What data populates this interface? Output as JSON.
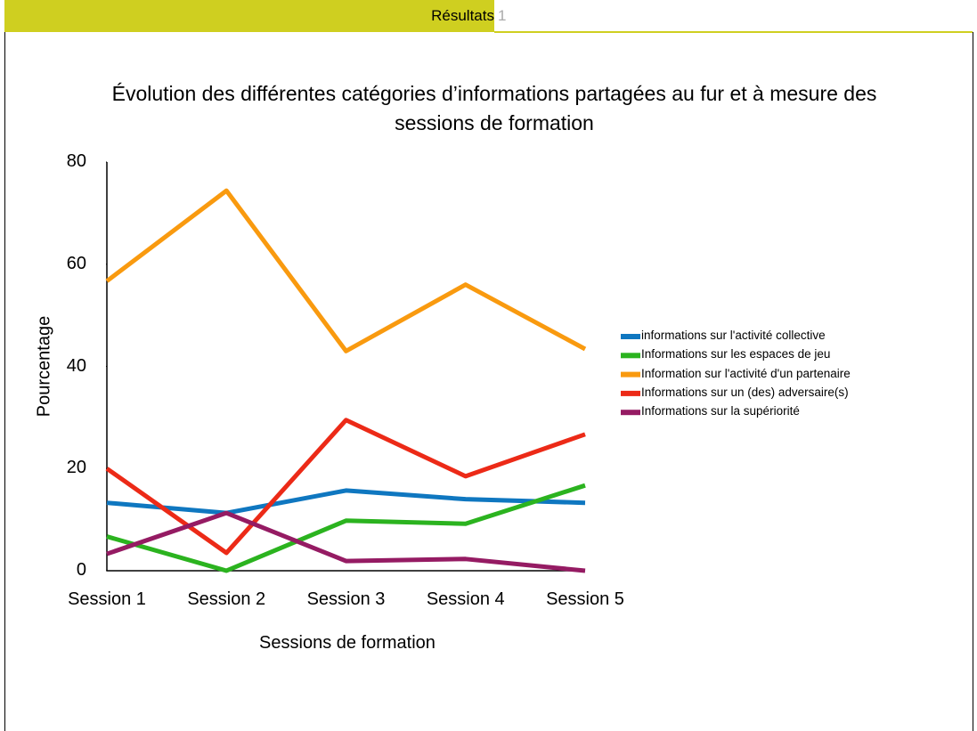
{
  "header": {
    "title": "Résultats",
    "page": "1"
  },
  "chart_data": {
    "type": "line",
    "title": "Évolution des différentes catégories d’informations partagées au fur et à mesure des sessions de formation",
    "y_label": "Pourcentage",
    "x_label": "Sessions de formation",
    "categories": [
      "Session 1",
      "Session 2",
      "Session 3",
      "Session 4",
      "Session 5"
    ],
    "ylim": [
      0,
      80
    ],
    "yticks": [
      0,
      20,
      40,
      60,
      80
    ],
    "grid": false,
    "legend": "right",
    "series": [
      {
        "name": "informations sur l'activité collective",
        "color": "#0f77c0",
        "values": [
          13.3,
          11.3,
          15.7,
          14,
          13.3
        ]
      },
      {
        "name": "Informations sur les espaces de jeu",
        "color": "#2bb31f",
        "values": [
          6.7,
          0,
          9.8,
          9.2,
          16.7
        ]
      },
      {
        "name": "Information sur l'activité d'un partenaire",
        "color": "#f99a0f",
        "values": [
          56.7,
          74.4,
          43,
          56,
          43.4
        ]
      },
      {
        "name": "Informations sur un (des) adversaire(s)",
        "color": "#ec2a17",
        "values": [
          20,
          3.5,
          29.5,
          18.5,
          26.7
        ]
      },
      {
        "name": "Informations sur la supériorité",
        "color": "#951b63",
        "values": [
          3.3,
          11.3,
          1.9,
          2.3,
          0
        ]
      }
    ]
  }
}
